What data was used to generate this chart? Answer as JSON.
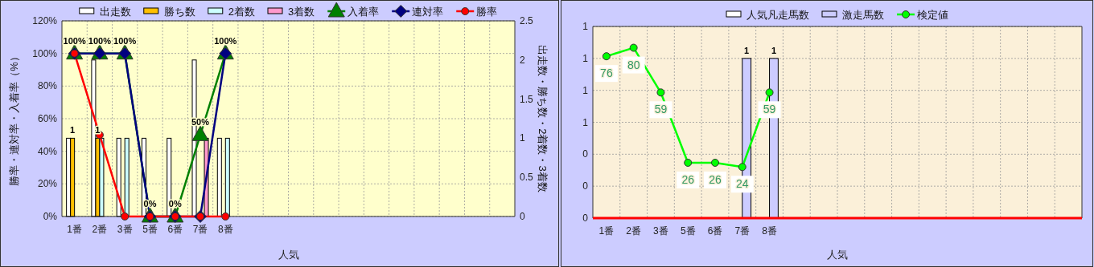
{
  "chart_data": [
    {
      "type": "bar",
      "categories": [
        "1番",
        "2番",
        "3番",
        "5番",
        "6番",
        "7番",
        "8番",
        null,
        null,
        null,
        null,
        null,
        null,
        null,
        null,
        null,
        null,
        null
      ],
      "xlabel": "人気",
      "ylabel": "勝率・連対率・入着率（%）",
      "y2label": "出走数・勝ち数・2着数・3着数",
      "ylim": [
        0,
        120
      ],
      "yticks": [
        {
          "value": 0,
          "label": "0%"
        },
        {
          "value": 20,
          "label": "20%"
        },
        {
          "value": 40,
          "label": "40%"
        },
        {
          "value": 60,
          "label": "60%"
        },
        {
          "value": 80,
          "label": "80%"
        },
        {
          "value": 100,
          "label": "100%"
        },
        {
          "value": 120,
          "label": "120%"
        }
      ],
      "y2lim": [
        0,
        2.5
      ],
      "y2ticks": [
        0,
        0.5,
        1,
        1.5,
        2,
        2.5
      ],
      "grid": true,
      "legend": "top",
      "series": [
        {
          "name": "出走数",
          "axis": "y2",
          "color": "#ffffff",
          "values": [
            1,
            2,
            1,
            1,
            1,
            2,
            1,
            null,
            null,
            null,
            null,
            null,
            null,
            null,
            null,
            null,
            null,
            null
          ]
        },
        {
          "name": "勝ち数",
          "axis": "y2",
          "color": "#ffc000",
          "values": [
            1,
            1,
            null,
            null,
            null,
            null,
            null,
            null,
            null,
            null,
            null,
            null,
            null,
            null,
            null,
            null,
            null,
            null
          ],
          "value_labels": [
            "1",
            "1",
            null,
            null,
            null,
            null,
            null,
            null,
            null,
            null,
            null,
            null,
            null,
            null,
            null,
            null,
            null,
            null
          ]
        },
        {
          "name": "2着数",
          "axis": "y2",
          "color": "#ccffff",
          "values": [
            null,
            1,
            1,
            null,
            null,
            null,
            1,
            null,
            null,
            null,
            null,
            null,
            null,
            null,
            null,
            null,
            null,
            null
          ]
        },
        {
          "name": "3着数",
          "axis": "y2",
          "color": "#ff99cc",
          "values": [
            null,
            null,
            null,
            null,
            null,
            1,
            null,
            null,
            null,
            null,
            null,
            null,
            null,
            null,
            null,
            null,
            null,
            null
          ]
        },
        {
          "name": "入着率",
          "type": "line",
          "color": "#008000",
          "marker": "triangle",
          "values": [
            100,
            100,
            100,
            0,
            0,
            50,
            100,
            null,
            null,
            null,
            null,
            null,
            null,
            null,
            null,
            null,
            null,
            null
          ],
          "value_labels": [
            "100%",
            "100%",
            "100%",
            "0%",
            "0%",
            "50%",
            "100%",
            null,
            null,
            null,
            null,
            null,
            null,
            null,
            null,
            null,
            null,
            null
          ]
        },
        {
          "name": "連対率",
          "type": "line",
          "color": "#000080",
          "marker": "diamond",
          "values": [
            100,
            100,
            100,
            0,
            0,
            0,
            100,
            null,
            null,
            null,
            null,
            null,
            null,
            null,
            null,
            null,
            null,
            null
          ]
        },
        {
          "name": "勝率",
          "type": "line",
          "color": "#ff0000",
          "marker": "circle",
          "values": [
            100,
            50,
            0,
            0,
            0,
            0,
            0,
            null,
            null,
            null,
            null,
            null,
            null,
            null,
            null,
            null,
            null,
            null
          ]
        }
      ]
    },
    {
      "type": "bar",
      "categories": [
        "1番",
        "2番",
        "3番",
        "5番",
        "6番",
        "7番",
        "8番",
        null,
        null,
        null,
        null,
        null,
        null,
        null,
        null,
        null,
        null,
        null
      ],
      "xlabel": "人気",
      "ylim": [
        0,
        1.2
      ],
      "yticks": [
        0,
        {
          "value": 0.2,
          "label": "0"
        },
        {
          "value": 0.4,
          "label": "0"
        },
        {
          "value": 0.6,
          "label": "1"
        },
        {
          "value": 0.8,
          "label": "1"
        },
        1,
        {
          "value": 1.2,
          "label": "1"
        }
      ],
      "y2lim": [
        0,
        90
      ],
      "tick_labels": "xy",
      "grid": true,
      "legend": "top",
      "data_labels": true,
      "series": [
        {
          "name": "人気凡走馬数",
          "color": "#ffffff",
          "values": [
            null,
            null,
            null,
            null,
            null,
            null,
            null,
            null,
            null,
            null,
            null,
            null,
            null,
            null,
            null,
            null,
            null,
            null
          ]
        },
        {
          "name": "激走馬数",
          "color": "#ccccff",
          "values": [
            null,
            null,
            null,
            null,
            null,
            1,
            1,
            null,
            null,
            null,
            null,
            null,
            null,
            null,
            null,
            null,
            null,
            null
          ]
        },
        {
          "name": "検定値",
          "type": "line",
          "axis": "y2",
          "color": "#00ff00",
          "marker": "circle",
          "values": [
            76,
            80,
            59,
            26,
            26,
            24,
            59,
            null,
            null,
            null,
            null,
            null,
            null,
            null,
            null,
            null,
            null,
            null
          ]
        }
      ]
    }
  ]
}
